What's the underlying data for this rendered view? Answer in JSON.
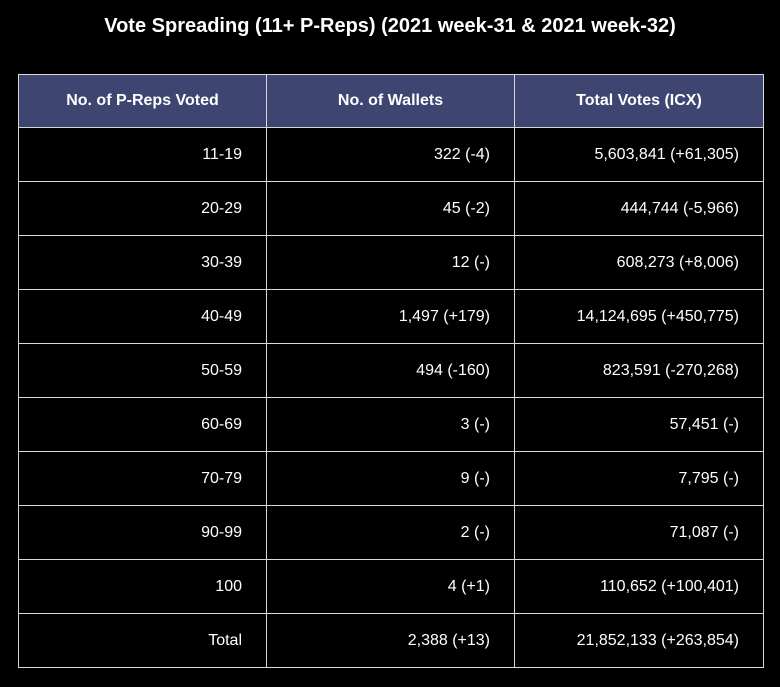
{
  "chart_data": {
    "type": "table",
    "title": "Vote Spreading (11+ P-Reps) (2021 week-31 & 2021 week-32)",
    "columns": [
      "No. of P-Reps Voted",
      "No. of Wallets",
      "Total Votes (ICX)"
    ],
    "rows": [
      [
        "11-19",
        "322 (-4)",
        "5,603,841 (+61,305)"
      ],
      [
        "20-29",
        "45 (-2)",
        "444,744 (-5,966)"
      ],
      [
        "30-39",
        "12 (-)",
        "608,273 (+8,006)"
      ],
      [
        "40-49",
        "1,497 (+179)",
        "14,124,695 (+450,775)"
      ],
      [
        "50-59",
        "494 (-160)",
        "823,591 (-270,268)"
      ],
      [
        "60-69",
        "3 (-)",
        "57,451 (-)"
      ],
      [
        "70-79",
        "9 (-)",
        "7,795 (-)"
      ],
      [
        "90-99",
        "2 (-)",
        "71,087 (-)"
      ],
      [
        "100",
        "4 (+1)",
        "110,652 (+100,401)"
      ],
      [
        "Total",
        "2,388 (+13)",
        "21,852,133 (+263,854)"
      ]
    ],
    "colors": {
      "header_background": "#3d4570",
      "page_background": "#000000",
      "text": "#ffffff",
      "grid": "#d8d8d8"
    }
  }
}
